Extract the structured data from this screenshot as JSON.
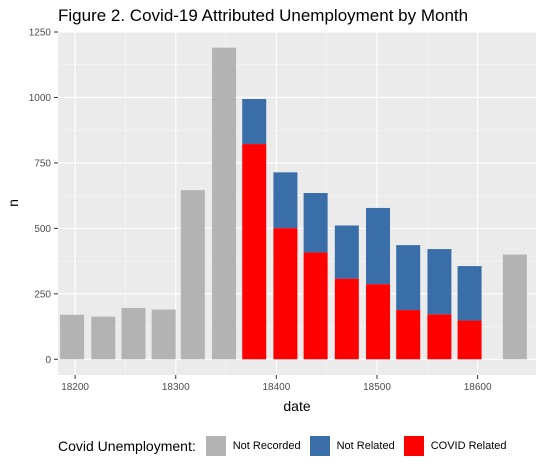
{
  "chart_data": {
    "type": "bar",
    "stacked": true,
    "title": "Figure 2. Covid-19 Attributed Unemployment by Month",
    "xlabel": "date",
    "ylabel": "n",
    "xlim": [
      18183,
      18658
    ],
    "ylim": [
      -60,
      1250
    ],
    "xticks": [
      18200,
      18300,
      18400,
      18500,
      18600
    ],
    "yticks": [
      0,
      250,
      500,
      750,
      1000,
      1250
    ],
    "grid": true,
    "legend_title": "Covid Unemployment:",
    "legend_position": "bottom",
    "series": [
      {
        "name": "Not Recorded",
        "color": "#b3b3b3",
        "points": [
          {
            "x": 18197,
            "y": 170
          },
          {
            "x": 18228,
            "y": 163
          },
          {
            "x": 18258,
            "y": 196
          },
          {
            "x": 18288,
            "y": 190
          },
          {
            "x": 18317,
            "y": 646
          },
          {
            "x": 18348,
            "y": 1190
          },
          {
            "x": 18637,
            "y": 400
          }
        ]
      },
      {
        "name": "COVID Related",
        "color": "#ff0000",
        "points": [
          {
            "x": 18378,
            "y": 822
          },
          {
            "x": 18409,
            "y": 501
          },
          {
            "x": 18439,
            "y": 408
          },
          {
            "x": 18470,
            "y": 308
          },
          {
            "x": 18501,
            "y": 287
          },
          {
            "x": 18531,
            "y": 188
          },
          {
            "x": 18562,
            "y": 172
          },
          {
            "x": 18592,
            "y": 148
          }
        ]
      },
      {
        "name": "Not Related",
        "color": "#3a6ea9",
        "points": [
          {
            "x": 18378,
            "y": 172
          },
          {
            "x": 18409,
            "y": 213
          },
          {
            "x": 18439,
            "y": 227
          },
          {
            "x": 18470,
            "y": 203
          },
          {
            "x": 18501,
            "y": 291
          },
          {
            "x": 18531,
            "y": 248
          },
          {
            "x": 18562,
            "y": 249
          },
          {
            "x": 18592,
            "y": 208
          }
        ]
      }
    ],
    "legend_order": [
      "Not Recorded",
      "Not Related",
      "COVID Related"
    ]
  }
}
